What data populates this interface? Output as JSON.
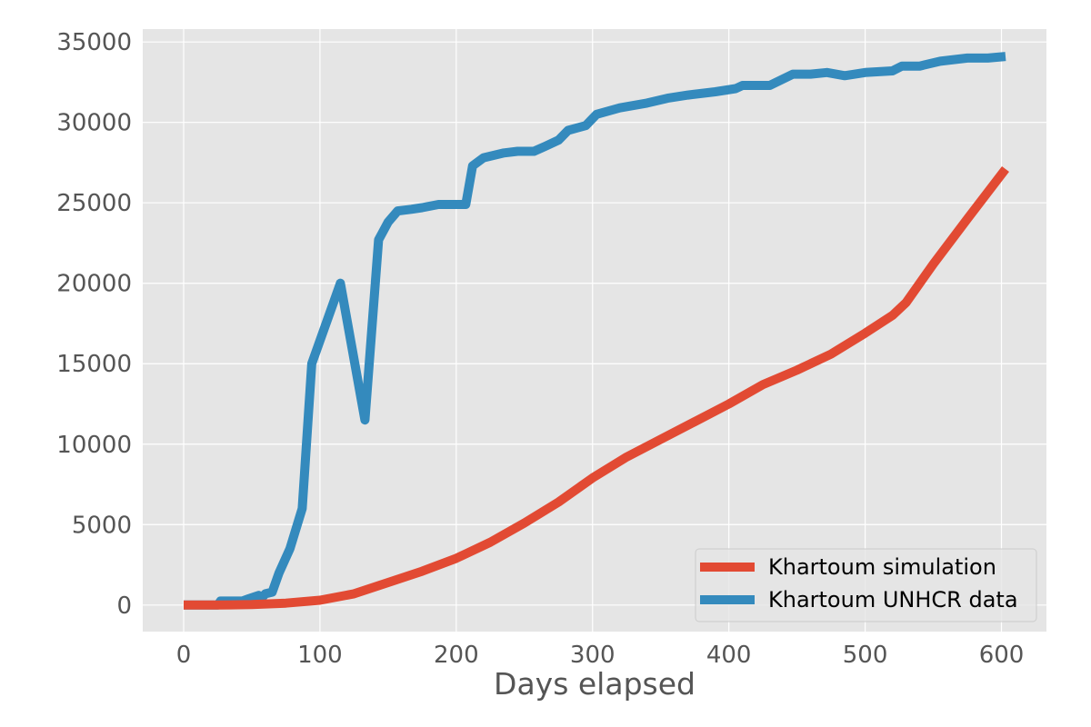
{
  "chart_data": {
    "type": "line",
    "title": "",
    "xlabel": "Days elapsed",
    "ylabel": "",
    "xlim": [
      -30,
      633
    ],
    "ylim": [
      -1650,
      35800
    ],
    "xticks": [
      0,
      100,
      200,
      300,
      400,
      500,
      600
    ],
    "yticks": [
      0,
      5000,
      10000,
      15000,
      20000,
      25000,
      30000,
      35000
    ],
    "grid": true,
    "legend_position": "lower-right",
    "series": [
      {
        "name": "Khartoum simulation",
        "color": "#E24A33",
        "x": [
          0,
          25,
          50,
          75,
          100,
          125,
          150,
          175,
          200,
          225,
          250,
          275,
          300,
          325,
          350,
          375,
          400,
          425,
          450,
          475,
          500,
          520,
          530,
          550,
          575,
          603
        ],
        "y": [
          0,
          0,
          30,
          120,
          300,
          700,
          1400,
          2100,
          2900,
          3900,
          5100,
          6400,
          7900,
          9200,
          10300,
          11400,
          12500,
          13700,
          14600,
          15600,
          16900,
          18000,
          18800,
          21200,
          24000,
          27100
        ]
      },
      {
        "name": "Khartoum UNHCR data",
        "color": "#348ABD",
        "x": [
          0,
          25,
          27,
          43,
          48,
          55,
          57,
          60,
          65,
          70,
          78,
          87,
          94,
          115,
          133,
          143,
          150,
          157,
          167,
          175,
          187,
          200,
          207,
          212,
          220,
          235,
          245,
          257,
          265,
          275,
          282,
          295,
          303,
          320,
          340,
          355,
          370,
          390,
          405,
          410,
          420,
          430,
          447,
          460,
          472,
          485,
          500,
          520,
          527,
          540,
          555,
          575,
          590,
          603
        ],
        "y": [
          0,
          0,
          250,
          250,
          400,
          600,
          400,
          700,
          800,
          2000,
          3500,
          6000,
          15000,
          20000,
          11500,
          22700,
          23800,
          24500,
          24600,
          24700,
          24900,
          24900,
          24900,
          27300,
          27800,
          28100,
          28200,
          28200,
          28500,
          28900,
          29500,
          29800,
          30500,
          30900,
          31200,
          31500,
          31700,
          31900,
          32100,
          32300,
          32300,
          32300,
          33000,
          33000,
          33100,
          32900,
          33100,
          33200,
          33500,
          33500,
          33800,
          34000,
          34000,
          34100
        ]
      }
    ]
  }
}
